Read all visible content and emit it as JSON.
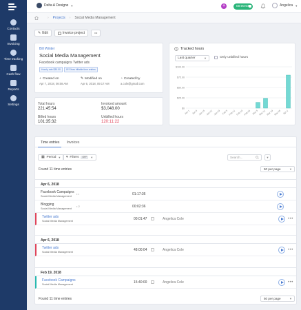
{
  "sidebar": {
    "items": [
      {
        "label": "Contacts",
        "icon": "contacts-icon"
      },
      {
        "label": "Invoicing",
        "icon": "invoice-icon"
      },
      {
        "label": "Time tracking",
        "icon": "clock-icon"
      },
      {
        "label": "Cash flow",
        "icon": "wallet-icon"
      },
      {
        "label": "Reports",
        "icon": "reports-icon"
      },
      {
        "label": "Settings",
        "icon": "gear-icon"
      }
    ]
  },
  "topbar": {
    "company": "Delta A Designs",
    "timer": "00:00:04",
    "user": "Angelica"
  },
  "breadcrumb": {
    "projects": "Projects",
    "current": "Social Media Management"
  },
  "actions": {
    "edit": "Edit",
    "invoice": "Invoice project",
    "more": "•••"
  },
  "project": {
    "client": "Bill Winter",
    "title": "Social Media Management",
    "description": "Facebook campaigns Twitter ads",
    "tags": [
      "Hourly rate $30.00",
      "Of Show billable time entries"
    ],
    "created_on_label": "Created on",
    "created_on": "Apr 7, 2018, 08:08 AM",
    "modified_on_label": "Modified on",
    "modified_on": "Apr 6, 2018, 09:17 AM",
    "created_by_label": "Created by",
    "created_by": "a.cole@gmail.com"
  },
  "stats": {
    "total_hours_label": "Total hours",
    "total_hours": "221:45:54",
    "invoiced_amount_label": "Invoiced amount",
    "invoiced_amount": "$3,048.00",
    "billed_hours_label": "Billed hours",
    "billed_hours": "101:35:32",
    "unbilled_hours_label": "Unbilled hours",
    "unbilled_hours": "120:11:22"
  },
  "tracked": {
    "title": "Tracked hours",
    "period": "Last quarter",
    "unbilled_label": "Only unbilled hours"
  },
  "chart_data": {
    "type": "bar",
    "categories": [
      "Jan 1",
      "Jan 8",
      "Jan 15",
      "Jan 22",
      "Jan 29",
      "Feb 5",
      "Feb 12",
      "Feb 19",
      "Feb 26",
      "Mar 5",
      "Mar 12",
      "Mar 19",
      "Mar 26",
      "Apr 2"
    ],
    "values": [
      0,
      0,
      0,
      0,
      0,
      0,
      0,
      0,
      0,
      14,
      24,
      0,
      0,
      80
    ],
    "ylim": [
      0,
      100
    ],
    "yticks": [
      "$0",
      "$25.00",
      "$50.00",
      "$75.00",
      "$100.00"
    ],
    "colors": {
      "bar": "#74d9d4",
      "bar_stroke": "#3ab3ad"
    }
  },
  "entries": {
    "tabs": [
      "Time entries",
      "Invoices"
    ],
    "period_btn": "Period",
    "filters_btn": "Filters",
    "filters_badge": "OFF",
    "search_placeholder": "Search...",
    "found": "Found 11 time entries",
    "per_page": "50 per page",
    "groups": [
      {
        "date": "Apr 6, 2018",
        "rows": [
          {
            "title": "Facebook Campaigns",
            "project": "Social Media Management",
            "extra": "• •",
            "duration": "01:17:36",
            "user": "",
            "marker": "none",
            "blue": false,
            "more": false
          },
          {
            "title": "Blogging",
            "project": "Social Media Management",
            "extra": "• 2",
            "duration": "00:02:36",
            "user": "",
            "marker": "none",
            "blue": false,
            "more": false
          },
          {
            "title": "Twitter ads",
            "project": "Social Media Management",
            "extra": "",
            "duration": "00:01:47",
            "user": "Angelica Cole",
            "marker": "red",
            "blue": true,
            "more": true
          }
        ]
      },
      {
        "date": "Apr 6, 2018",
        "rows": [
          {
            "title": "Twitter ads",
            "project": "Social Media Management",
            "extra": "",
            "duration": "48:00:04",
            "user": "Angelica Cole",
            "marker": "red",
            "blue": true,
            "more": true
          }
        ]
      },
      {
        "date": "Feb 19, 2018",
        "rows": [
          {
            "title": "Facebook Campaigns",
            "project": "Social Media Management",
            "extra": "",
            "duration": "15:40:00",
            "user": "Angelica Cole",
            "marker": "teal",
            "blue": true,
            "more": true
          }
        ]
      }
    ]
  }
}
